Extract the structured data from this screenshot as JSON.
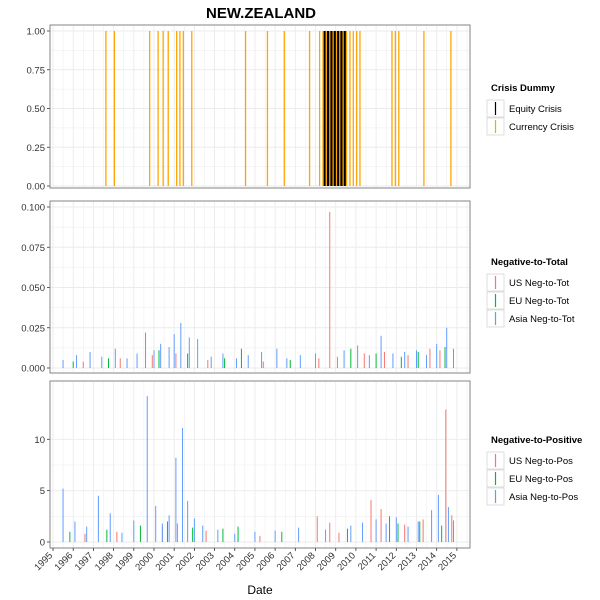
{
  "title": "NEW.ZEALAND",
  "xlabel": "Date",
  "colors": {
    "equity": "#000000",
    "currency": "#FFA500",
    "us": "#F8766D",
    "eu": "#00BA38",
    "asia": "#619CFF",
    "grid": "#ebebeb",
    "panel_border": "#7f7f7f"
  },
  "chart_data": [
    {
      "type": "bar",
      "panel": "Crisis Dummy",
      "xlabel": "Date",
      "ylabel": "",
      "xlim": [
        "1995-01-01",
        "2015-12-31"
      ],
      "ylim": [
        0,
        1
      ],
      "yticks": [
        "0.00",
        "0.25",
        "0.50",
        "0.75",
        "1.00"
      ],
      "grid": true,
      "legend": {
        "title": "Crisis Dummy",
        "position": "right",
        "entries": [
          "Equity Crisis",
          "Currency Crisis"
        ]
      },
      "series": [
        {
          "name": "Equity Crisis",
          "dates": [
            "2008-06-15",
            "2008-08-15",
            "2008-09-15",
            "2008-10-15",
            "2008-11-15",
            "2008-12-15",
            "2009-01-15",
            "2009-02-15",
            "2009-03-15",
            "2009-04-15",
            "2009-05-15",
            "2009-06-15"
          ],
          "value": 1
        },
        {
          "name": "Currency Crisis",
          "dates": [
            "1997-08-15",
            "1998-01-15",
            "1999-10-15",
            "2000-03-15",
            "2000-06-15",
            "2000-09-15",
            "2001-02-15",
            "2001-04-15",
            "2001-06-15",
            "2001-11-15",
            "2004-07-15",
            "2005-08-15",
            "2006-06-15",
            "2007-09-15",
            "2008-03-15",
            "2008-05-15",
            "2008-07-15",
            "2008-09-15",
            "2008-11-15",
            "2009-01-15",
            "2009-03-15",
            "2009-05-15",
            "2009-07-15",
            "2009-09-15",
            "2009-11-15",
            "2010-01-15",
            "2010-03-15",
            "2011-10-15",
            "2011-12-15",
            "2012-02-15",
            "2013-05-15",
            "2014-09-15"
          ],
          "value": 1
        }
      ]
    },
    {
      "type": "bar",
      "panel": "Negative-to-Total",
      "xlabel": "Date",
      "ylabel": "",
      "xlim": [
        "1995-01-01",
        "2015-12-31"
      ],
      "ylim": [
        0,
        0.1
      ],
      "yticks": [
        "0.000",
        "0.025",
        "0.050",
        "0.075",
        "0.100"
      ],
      "grid": true,
      "legend": {
        "title": "Negative-to-Total",
        "position": "right",
        "entries": [
          "US Neg-to-Tot",
          "EU Neg-to-Tot",
          "Asia Neg-to-Tot"
        ]
      },
      "series": [
        {
          "name": "US Neg-to-Tot",
          "x": [
            "1996-07-01",
            "1998-05-01",
            "1999-12-01",
            "2001-02-01",
            "2002-09-01",
            "2005-06-01",
            "2008-03-01",
            "2008-09-15",
            "2009-02-01",
            "2010-06-01",
            "2011-06-01",
            "2012-08-01",
            "2013-09-01",
            "2014-03-01"
          ],
          "y": [
            0.004,
            0.006,
            0.008,
            0.009,
            0.005,
            0.004,
            0.006,
            0.097,
            0.007,
            0.009,
            0.01,
            0.008,
            0.012,
            0.011
          ]
        },
        {
          "name": "EU Neg-to-Tot",
          "x": [
            "1996-01-01",
            "1997-10-01",
            "2000-04-01",
            "2001-09-01",
            "2003-07-01",
            "2004-05-01",
            "2006-10-01",
            "2009-10-01",
            "2011-01-01",
            "2012-04-01",
            "2013-02-01",
            "2014-06-01"
          ],
          "y": [
            0.004,
            0.006,
            0.011,
            0.009,
            0.006,
            0.012,
            0.005,
            0.012,
            0.009,
            0.007,
            0.01,
            0.013
          ]
        },
        {
          "name": "Asia Neg-to-Tot",
          "x": [
            "1995-07-01",
            "1996-03-01",
            "1996-11-01",
            "1997-06-01",
            "1998-02-01",
            "1998-09-01",
            "1999-03-01",
            "1999-08-01",
            "2000-01-01",
            "2000-05-01",
            "2000-10-01",
            "2001-01-01",
            "2001-05-01",
            "2001-10-01",
            "2002-03-01",
            "2002-11-01",
            "2003-06-01",
            "2004-02-01",
            "2004-09-01",
            "2005-05-01",
            "2006-02-01",
            "2006-08-01",
            "2007-04-01",
            "2008-01-01",
            "2009-06-01",
            "2010-02-01",
            "2010-09-01",
            "2011-04-01",
            "2011-11-01",
            "2012-06-01",
            "2013-01-01",
            "2013-07-01",
            "2014-01-01",
            "2014-07-01",
            "2014-11-01"
          ],
          "y": [
            0.005,
            0.008,
            0.01,
            0.007,
            0.012,
            0.006,
            0.009,
            0.022,
            0.011,
            0.015,
            0.013,
            0.021,
            0.028,
            0.019,
            0.018,
            0.007,
            0.009,
            0.006,
            0.008,
            0.01,
            0.012,
            0.006,
            0.008,
            0.009,
            0.011,
            0.014,
            0.008,
            0.02,
            0.009,
            0.01,
            0.011,
            0.008,
            0.015,
            0.025,
            0.012
          ]
        }
      ]
    },
    {
      "type": "bar",
      "panel": "Negative-to-Positive",
      "xlabel": "Date",
      "ylabel": "",
      "xlim": [
        "1995-01-01",
        "2015-12-31"
      ],
      "ylim": [
        0,
        14.8
      ],
      "yticks": [
        "0",
        "5",
        "10"
      ],
      "grid": true,
      "legend": {
        "title": "Negative-to-Positive",
        "position": "right",
        "entries": [
          "US Neg-to-Pos",
          "EU Neg-to-Pos",
          "Asia Neg-to-Pos"
        ]
      },
      "series": [
        {
          "name": "US Neg-to-Pos",
          "x": [
            "1996-08-01",
            "1998-03-01",
            "2000-06-01",
            "2001-03-01",
            "2002-08-01",
            "2005-04-01",
            "2008-02-01",
            "2008-09-15",
            "2009-03-01",
            "2010-10-01",
            "2011-04-01",
            "2012-06-01",
            "2013-05-01",
            "2014-06-15",
            "2014-10-01"
          ],
          "y": [
            0.8,
            1.0,
            1.5,
            1.8,
            1.1,
            0.6,
            2.5,
            1.9,
            0.9,
            4.1,
            3.2,
            1.7,
            2.2,
            12.9,
            2.6
          ]
        },
        {
          "name": "EU Neg-to-Pos",
          "x": [
            "1995-11-01",
            "1997-09-01",
            "1999-05-01",
            "2000-09-01",
            "2001-12-01",
            "2003-06-01",
            "2004-03-01",
            "2006-05-01",
            "2009-08-01",
            "2011-09-01",
            "2012-02-01",
            "2013-03-01",
            "2014-04-01"
          ],
          "y": [
            1.0,
            1.2,
            1.6,
            2.0,
            1.4,
            1.3,
            1.5,
            1.0,
            1.3,
            2.5,
            1.8,
            2.0,
            1.6
          ]
        },
        {
          "name": "Asia Neg-to-Pos",
          "x": [
            "1995-07-01",
            "1996-02-01",
            "1996-09-01",
            "1997-04-01",
            "1997-11-01",
            "1998-06-01",
            "1999-01-01",
            "1999-09-01",
            "2000-02-01",
            "2000-06-01",
            "2000-10-01",
            "2001-02-01",
            "2001-06-01",
            "2001-09-01",
            "2002-01-01",
            "2002-06-01",
            "2003-03-01",
            "2004-01-01",
            "2005-01-01",
            "2006-01-01",
            "2007-03-01",
            "2008-07-01",
            "2009-10-01",
            "2010-05-01",
            "2011-01-01",
            "2011-07-01",
            "2012-01-01",
            "2012-08-01",
            "2013-02-01",
            "2013-10-01",
            "2014-02-01",
            "2014-08-01",
            "2014-11-01"
          ],
          "y": [
            5.2,
            2.0,
            1.5,
            4.5,
            2.8,
            0.9,
            2.1,
            14.2,
            3.5,
            1.8,
            2.6,
            8.2,
            11.1,
            4.0,
            2.3,
            1.6,
            1.2,
            0.8,
            1.0,
            1.1,
            1.4,
            1.2,
            1.6,
            1.9,
            2.2,
            1.8,
            2.4,
            1.5,
            2.0,
            3.1,
            4.6,
            3.4,
            2.1
          ]
        }
      ]
    }
  ],
  "x_tick_labels": [
    "1995",
    "1996",
    "1997",
    "1998",
    "1999",
    "2000",
    "2001",
    "2002",
    "2003",
    "2004",
    "2005",
    "2006",
    "2007",
    "2008",
    "2009",
    "2010",
    "2011",
    "2012",
    "2013",
    "2014",
    "2015"
  ]
}
